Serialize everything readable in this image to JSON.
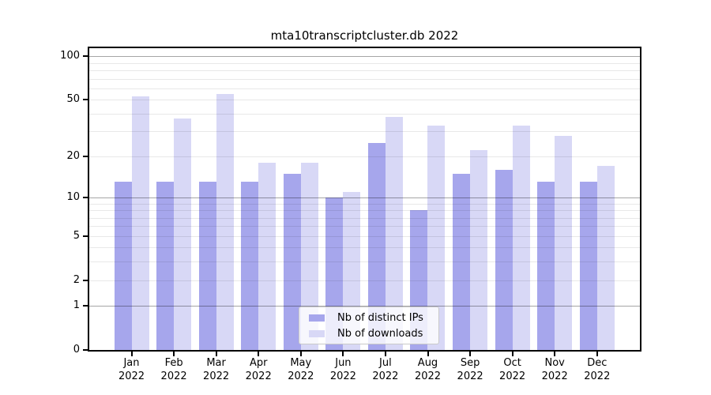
{
  "figure": {
    "background": "#ffffff"
  },
  "chart_data": {
    "type": "bar",
    "title": "mta10transcriptcluster.db 2022",
    "categories": [
      "Jan",
      "Feb",
      "Mar",
      "Apr",
      "May",
      "Jun",
      "Jul",
      "Aug",
      "Sep",
      "Oct",
      "Nov",
      "Dec"
    ],
    "year_label": "2022",
    "series": [
      {
        "name": "Nb of distinct IPs",
        "color": "#a6a6ec",
        "values": [
          13,
          13,
          13,
          13,
          15,
          10,
          25,
          8,
          15,
          16,
          13,
          13
        ]
      },
      {
        "name": "Nb of downloads",
        "color": "#d8d8f6",
        "values": [
          53,
          37,
          55,
          18,
          18,
          11,
          38,
          33,
          22,
          33,
          28,
          17
        ]
      }
    ],
    "y_axis": {
      "ticks": [
        0,
        1,
        2,
        5,
        10,
        20,
        50,
        100
      ],
      "minor_ticks": [
        3,
        4,
        6,
        7,
        8,
        9,
        30,
        40,
        60,
        70,
        80,
        90
      ],
      "scale": "log1p",
      "range_top": 114
    },
    "x_axis": {
      "label_lines": 2
    },
    "legend": {
      "position": "bottom-center"
    },
    "grid": true,
    "colors": {
      "axis": "#000000",
      "decade_gridline": "rgba(0,0,0,0.35)",
      "minor_gridline": "rgba(0,0,0,0.09)",
      "legend_border": "#c9c9c9"
    }
  }
}
